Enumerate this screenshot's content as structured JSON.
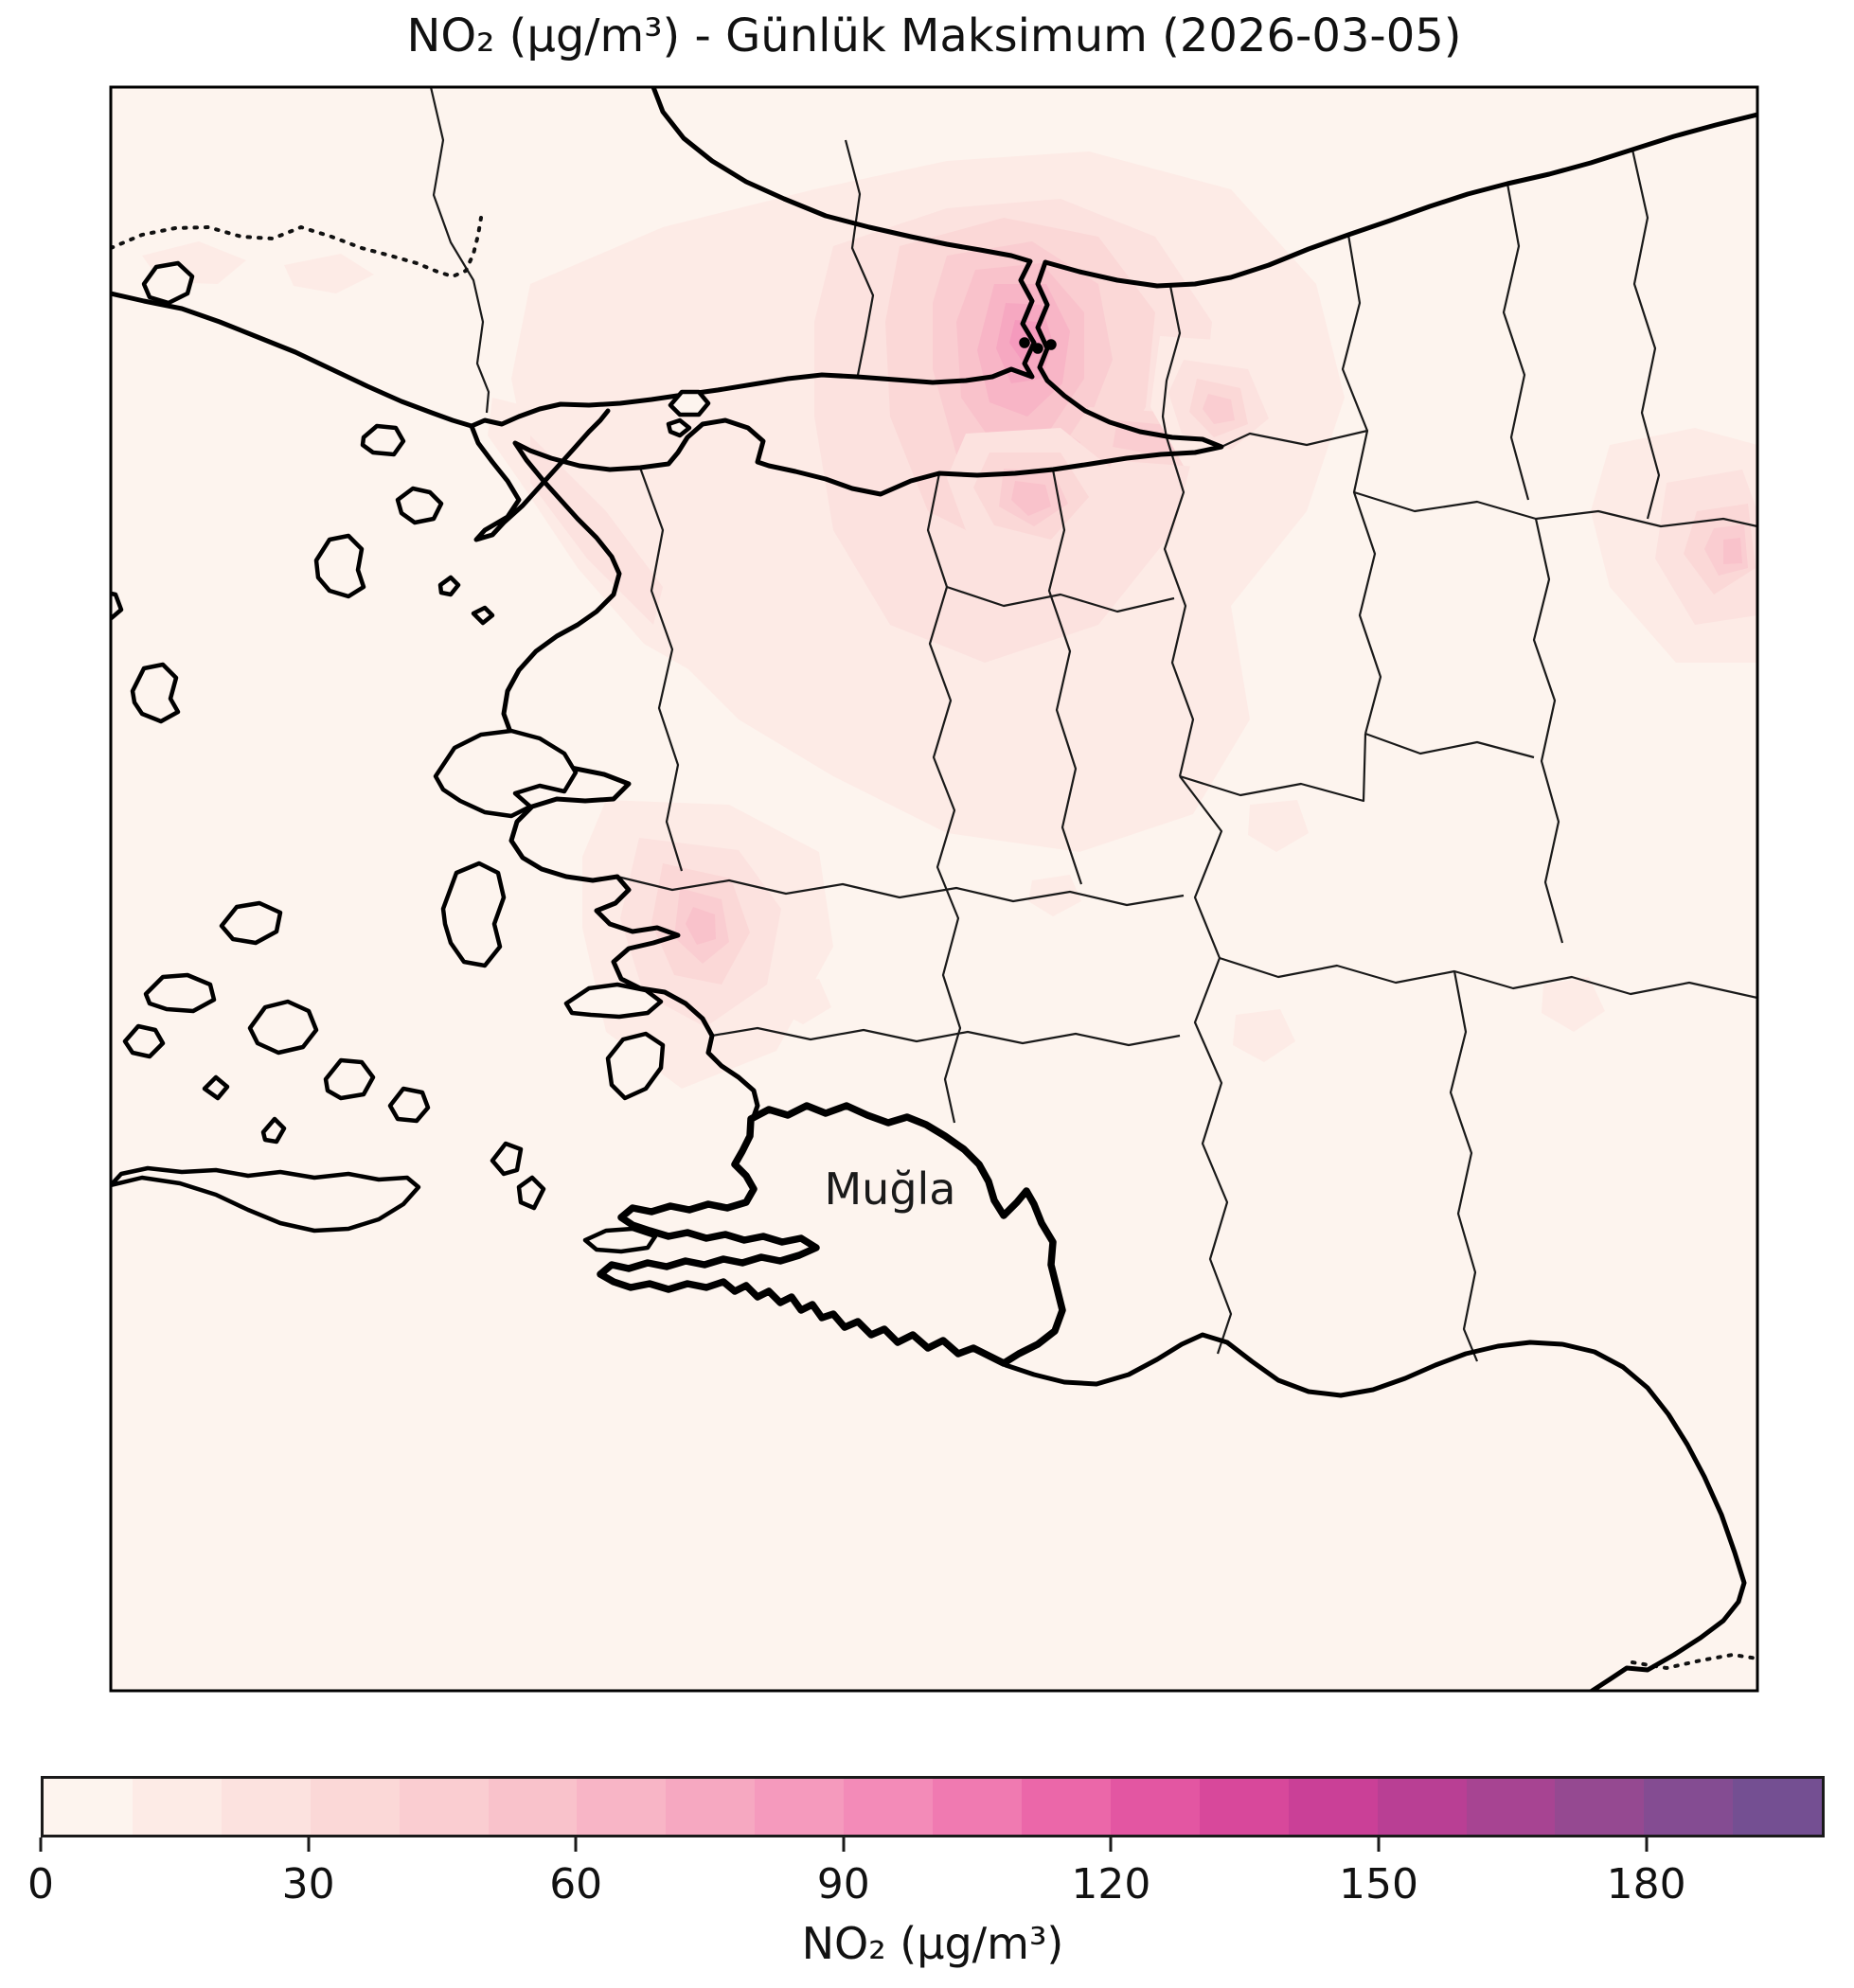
{
  "title": "NO₂ (µg/m³) - Günlük Maksimum (2026-03-05)",
  "map": {
    "region_label": "Muğla",
    "highlighted_region": "Muğla",
    "background_color": "#fdf4ee",
    "coast_color": "#000000",
    "border_color": "#1a1a1a"
  },
  "colorbar": {
    "label": "NO₂ (µg/m³)",
    "min": 0,
    "max": 200,
    "tick_values": [
      0,
      30,
      60,
      90,
      120,
      150,
      180
    ],
    "tick_labels": [
      "0",
      "30",
      "60",
      "90",
      "120",
      "150",
      "180"
    ],
    "level_step": 10,
    "palette": [
      "#fdf4ee",
      "#fdebe6",
      "#fce2df",
      "#fbd8d7",
      "#facdd1",
      "#f9c2cb",
      "#f8b5c6",
      "#f6a8c1",
      "#f59abd",
      "#f38bb8",
      "#f07ab1",
      "#eb67a9",
      "#e356a2",
      "#d8489b",
      "#ca4097",
      "#b93f94",
      "#a74492",
      "#954991",
      "#844c92",
      "#744f92"
    ]
  },
  "chart_data": {
    "type": "heatmap",
    "title": "NO₂ (µg/m³) - Günlük Maksimum (2026-03-05)",
    "date": "2026-03-05",
    "variable": "NO₂",
    "units": "µg/m³",
    "statistic": "Günlük Maksimum",
    "colorbar_label": "NO₂ (µg/m³)",
    "colorbar_range": [
      0,
      200
    ],
    "colorbar_ticks": [
      0,
      30,
      60,
      90,
      120,
      150,
      180
    ],
    "contour_interval": 10,
    "highlighted_region": "Muğla",
    "hotspots": [
      {
        "area": "istanbul-bosphorus",
        "approx_peak": 90
      },
      {
        "area": "east-of-izmit-gulf",
        "approx_peak": 60
      },
      {
        "area": "inland-northwest",
        "approx_peak": 50
      },
      {
        "area": "east-map-edge",
        "approx_peak": 60
      },
      {
        "area": "izmir-coast",
        "approx_peak": 60
      }
    ],
    "background_value_range": [
      0,
      10
    ]
  }
}
